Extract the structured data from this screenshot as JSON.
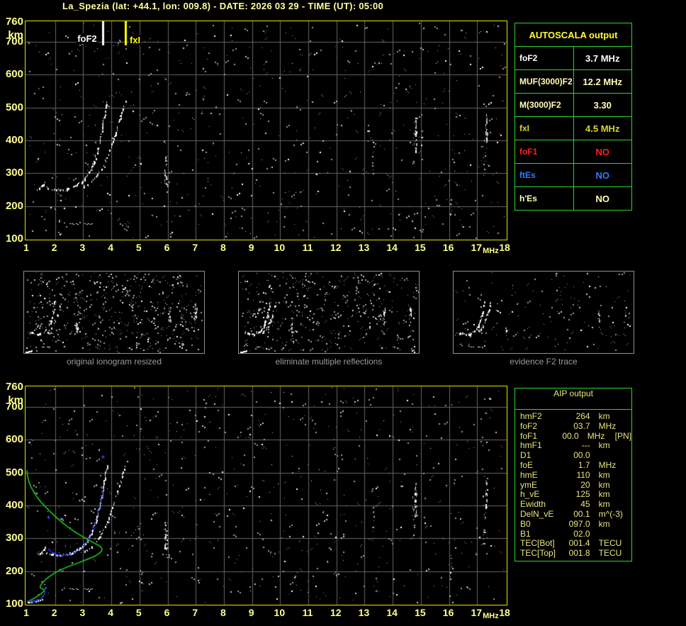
{
  "window": {
    "title": "La_Spezia (lat: +44.1, lon: 009.8) - DATE: 2026 03 29 - TIME (UT): 05:00"
  },
  "axes": {
    "y_unit": "km",
    "x_unit": "MHz",
    "y_ticks": [
      760,
      700,
      600,
      500,
      400,
      300,
      200,
      100
    ],
    "x_ticks": [
      1,
      2,
      3,
      4,
      5,
      6,
      7,
      8,
      9,
      10,
      11,
      12,
      13,
      14,
      15,
      16,
      17,
      18
    ]
  },
  "top_plot": {
    "markers": {
      "foF2": {
        "label": "foF2",
        "mhz": 3.7
      },
      "fxI": {
        "label": "fxI",
        "mhz": 4.5
      }
    }
  },
  "autoscala_table": {
    "title": "AUTOSCALA output",
    "rows": [
      {
        "name": "foF2",
        "value": "3.7 MHz",
        "color": "#ffffff"
      },
      {
        "name": "MUF(3000)F2",
        "value": "12.2 MHz",
        "color": "#ffffb4"
      },
      {
        "name": "M(3000)F2",
        "value": "3.30",
        "color": "#ffffb4"
      },
      {
        "name": "fxI",
        "value": "4.5 MHz",
        "color": "#d6d62a"
      },
      {
        "name": "foF1",
        "value": "NO",
        "color": "#ff2020"
      },
      {
        "name": "ftEs",
        "value": "NO",
        "color": "#2e7bff"
      },
      {
        "name": "h'Es",
        "value": "NO",
        "color": "#ffffb4"
      }
    ]
  },
  "thumbnails": [
    {
      "caption": "original ionogram resized",
      "seed": 101,
      "noise_count": 520,
      "trace_prob": 0.5,
      "col_scale": 0.55
    },
    {
      "caption": "eliminate multiple reflections",
      "seed": 202,
      "noise_count": 440,
      "trace_prob": 0.5,
      "col_scale": 0.45
    },
    {
      "caption": "evidence F2 trace",
      "seed": 303,
      "noise_count": 150,
      "trace_prob": 0.62,
      "col_scale": 0.25
    }
  ],
  "aip_table": {
    "title": "AIP output",
    "rows": [
      {
        "name": "hmF2",
        "value": "264",
        "unit": "km",
        "extra": ""
      },
      {
        "name": "foF2",
        "value": "03.7",
        "unit": "MHz",
        "extra": ""
      },
      {
        "name": "foF1",
        "value": "00.0",
        "unit": "MHz",
        "extra": "[PN]"
      },
      {
        "name": "hmF1",
        "value": "---",
        "unit": "km",
        "extra": ""
      },
      {
        "name": "D1",
        "value": "00.0",
        "unit": "",
        "extra": ""
      },
      {
        "name": "foE",
        "value": "1.7",
        "unit": "MHz",
        "extra": ""
      },
      {
        "name": "hmE",
        "value": "110",
        "unit": "km",
        "extra": ""
      },
      {
        "name": "ymE",
        "value": "20",
        "unit": "km",
        "extra": ""
      },
      {
        "name": "h_vE",
        "value": "125",
        "unit": "km",
        "extra": ""
      },
      {
        "name": "Ewidth",
        "value": "45",
        "unit": "km",
        "extra": ""
      },
      {
        "name": "DelN_vE",
        "value": "00.1",
        "unit": "m^(-3)",
        "extra": ""
      },
      {
        "name": "B0",
        "value": "097.0",
        "unit": "km",
        "extra": ""
      },
      {
        "name": "B1",
        "value": "02.0",
        "unit": "",
        "extra": ""
      },
      {
        "name": "TEC[Bot]",
        "value": "001.4",
        "unit": "TECU",
        "extra": ""
      },
      {
        "name": "TEC[Top]",
        "value": "001.8",
        "unit": "TECU",
        "extra": ""
      }
    ]
  },
  "colors": {
    "background": "#000000",
    "plot_border": "#e3e300",
    "tick_label": "#ffff8c",
    "grid": "#676767",
    "table_green": "#2fd32f",
    "autoscala_header": "#ffff2e",
    "aip_text": "#e6e67a",
    "profile_green": "#1fd41f",
    "restored_trace_blue": "#2b3cf2",
    "fof2_marker": "#ffffff",
    "fxi_marker": "#ffff00"
  },
  "chart_data": {
    "type": "scatter",
    "title": "",
    "x_axis": {
      "label": "MHz",
      "range": [
        1,
        18
      ]
    },
    "y_axis": {
      "label": "km",
      "range": [
        100,
        760
      ]
    },
    "markers": {
      "foF2_mhz": 3.7,
      "fxI_mhz": 4.5
    },
    "o_tail": [
      [
        1.4,
        248
      ],
      [
        1.46,
        252
      ],
      [
        1.52,
        257
      ],
      [
        1.58,
        262
      ],
      [
        1.63,
        267
      ],
      [
        1.67,
        273
      ]
    ],
    "o_trace": [
      [
        1.7,
        256
      ],
      [
        1.77,
        253
      ],
      [
        1.84,
        251
      ],
      [
        1.92,
        250
      ],
      [
        2.0,
        249
      ],
      [
        2.08,
        248
      ],
      [
        2.16,
        248
      ],
      [
        2.24,
        248
      ],
      [
        2.32,
        249
      ],
      [
        2.41,
        250
      ],
      [
        2.5,
        252
      ],
      [
        2.59,
        255
      ],
      [
        2.68,
        258
      ],
      [
        2.77,
        262
      ],
      [
        2.86,
        267
      ],
      [
        2.95,
        272
      ],
      [
        3.03,
        278
      ],
      [
        3.1,
        285
      ],
      [
        3.17,
        293
      ],
      [
        3.23,
        302
      ],
      [
        3.29,
        312
      ],
      [
        3.34,
        322
      ],
      [
        3.39,
        333
      ],
      [
        3.44,
        345
      ],
      [
        3.49,
        357
      ],
      [
        3.53,
        370
      ],
      [
        3.57,
        383
      ],
      [
        3.61,
        397
      ],
      [
        3.64,
        411
      ],
      [
        3.67,
        425
      ],
      [
        3.7,
        439
      ],
      [
        3.73,
        453
      ],
      [
        3.76,
        468
      ],
      [
        3.79,
        483
      ],
      [
        3.82,
        498
      ],
      [
        3.85,
        511
      ],
      [
        3.88,
        521
      ]
    ],
    "x_trace": [
      [
        3.05,
        258
      ],
      [
        3.18,
        264
      ],
      [
        3.3,
        272
      ],
      [
        3.42,
        282
      ],
      [
        3.53,
        294
      ],
      [
        3.63,
        307
      ],
      [
        3.72,
        321
      ],
      [
        3.81,
        336
      ],
      [
        3.89,
        352
      ],
      [
        3.97,
        369
      ],
      [
        4.04,
        387
      ],
      [
        4.11,
        405
      ],
      [
        4.18,
        424
      ],
      [
        4.25,
        443
      ],
      [
        4.32,
        462
      ],
      [
        4.38,
        481
      ],
      [
        4.44,
        500
      ],
      [
        4.49,
        514
      ],
      [
        4.53,
        522
      ]
    ],
    "diag_scatter": [
      [
        4.55,
        292
      ],
      [
        4.62,
        300
      ],
      [
        4.7,
        309
      ],
      [
        4.78,
        318
      ],
      [
        4.86,
        327
      ],
      [
        4.94,
        337
      ],
      [
        5.02,
        346
      ],
      [
        1.95,
        297
      ],
      [
        2.05,
        290
      ]
    ],
    "e_dashes": [
      [
        2.3,
        150
      ],
      [
        2.52,
        147
      ],
      [
        2.58,
        147
      ],
      [
        2.64,
        146
      ],
      [
        2.73,
        147
      ],
      [
        2.79,
        146
      ],
      [
        3.05,
        147
      ],
      [
        3.11,
        146
      ],
      [
        3.17,
        147
      ],
      [
        3.23,
        146
      ],
      [
        3.29,
        147
      ],
      [
        1.6,
        160
      ],
      [
        1.5,
        168
      ]
    ],
    "e_tail": [
      [
        1.02,
        107
      ],
      [
        1.08,
        107
      ],
      [
        1.15,
        107
      ],
      [
        1.22,
        108
      ],
      [
        1.3,
        109
      ],
      [
        1.38,
        110
      ],
      [
        1.46,
        112
      ],
      [
        1.52,
        115
      ]
    ],
    "noise_columns": [
      {
        "mhz": 5.92,
        "km": [
          265,
          350
        ],
        "count": 24,
        "bright": 0.4
      },
      {
        "mhz": 5.97,
        "km": [
          235,
          300
        ],
        "count": 8,
        "bright": 0.1
      },
      {
        "mhz": 14.8,
        "km": [
          365,
          470
        ],
        "count": 26,
        "bright": 0.5
      },
      {
        "mhz": 14.72,
        "km": [
          300,
          430
        ],
        "count": 10,
        "bright": 0.12
      },
      {
        "mhz": 17.32,
        "km": [
          395,
          480
        ],
        "count": 24,
        "bright": 0.55
      },
      {
        "mhz": 17.25,
        "km": [
          285,
          410
        ],
        "count": 12,
        "bright": 0.15
      },
      {
        "mhz": 13.28,
        "km": [
          300,
          395
        ],
        "count": 9,
        "bright": 0.08
      },
      {
        "mhz": 16.05,
        "km": [
          150,
          255
        ],
        "count": 7,
        "bright": 0.05
      }
    ],
    "noise": {
      "seed_top": 20260329,
      "seed_bottom": 5032026,
      "count": 720
    },
    "profile_green": [
      [
        1.0,
        507
      ],
      [
        1.02,
        490
      ],
      [
        1.07,
        472
      ],
      [
        1.15,
        455
      ],
      [
        1.25,
        440
      ],
      [
        1.37,
        424
      ],
      [
        1.5,
        410
      ],
      [
        1.64,
        397
      ],
      [
        1.79,
        384
      ],
      [
        1.95,
        371
      ],
      [
        2.12,
        358
      ],
      [
        2.3,
        345
      ],
      [
        2.48,
        333
      ],
      [
        2.66,
        322
      ],
      [
        2.84,
        312
      ],
      [
        3.02,
        303
      ],
      [
        3.19,
        295
      ],
      [
        3.34,
        288
      ],
      [
        3.47,
        282
      ],
      [
        3.57,
        277
      ],
      [
        3.64,
        272
      ],
      [
        3.67,
        267
      ],
      [
        3.65,
        261
      ],
      [
        3.58,
        255
      ],
      [
        3.48,
        249
      ],
      [
        3.35,
        243
      ],
      [
        3.2,
        238
      ],
      [
        3.03,
        232
      ],
      [
        2.85,
        226
      ],
      [
        2.66,
        220
      ],
      [
        2.47,
        214
      ],
      [
        2.28,
        207
      ],
      [
        2.11,
        200
      ],
      [
        1.96,
        193
      ],
      [
        1.82,
        185
      ],
      [
        1.7,
        177
      ],
      [
        1.6,
        169
      ],
      [
        1.52,
        161
      ],
      [
        1.47,
        154
      ],
      [
        1.48,
        149
      ],
      [
        1.54,
        146
      ],
      [
        1.6,
        144
      ],
      [
        1.62,
        141
      ],
      [
        1.58,
        137
      ],
      [
        1.51,
        132
      ],
      [
        1.43,
        127
      ],
      [
        1.34,
        122
      ],
      [
        1.24,
        117
      ],
      [
        1.14,
        112
      ],
      [
        1.05,
        109
      ],
      [
        1.0,
        108
      ]
    ],
    "blue_trace": [
      [
        1.02,
        108
      ],
      [
        1.08,
        108
      ],
      [
        1.14,
        108
      ],
      [
        1.2,
        109
      ],
      [
        1.26,
        110
      ],
      [
        1.32,
        111
      ],
      [
        1.38,
        112
      ],
      [
        1.44,
        114
      ],
      [
        1.5,
        117
      ],
      [
        1.55,
        121
      ],
      [
        1.59,
        126
      ],
      [
        1.62,
        131
      ],
      [
        1.64,
        136
      ],
      [
        1.78,
        266
      ],
      [
        1.84,
        262
      ],
      [
        1.9,
        258
      ],
      [
        1.97,
        254
      ],
      [
        2.05,
        251
      ],
      [
        2.13,
        249
      ],
      [
        2.21,
        248
      ],
      [
        2.3,
        248
      ],
      [
        2.39,
        249
      ],
      [
        2.48,
        251
      ],
      [
        2.57,
        254
      ],
      [
        2.66,
        258
      ],
      [
        2.75,
        262
      ],
      [
        2.84,
        267
      ],
      [
        2.93,
        272
      ],
      [
        3.0,
        278
      ],
      [
        3.07,
        285
      ],
      [
        3.13,
        293
      ],
      [
        3.19,
        302
      ],
      [
        3.25,
        312
      ],
      [
        3.3,
        322
      ],
      [
        3.35,
        333
      ],
      [
        3.4,
        345
      ],
      [
        3.45,
        357
      ],
      [
        3.49,
        369
      ],
      [
        3.53,
        382
      ],
      [
        3.56,
        394
      ],
      [
        3.59,
        406
      ],
      [
        3.62,
        419
      ],
      [
        3.64,
        430
      ],
      [
        3.66,
        440
      ]
    ],
    "blue_crosses": [
      [
        1.66,
        150
      ],
      [
        1.76,
        366
      ],
      [
        3.7,
        548
      ],
      [
        3.64,
        455
      ]
    ]
  }
}
